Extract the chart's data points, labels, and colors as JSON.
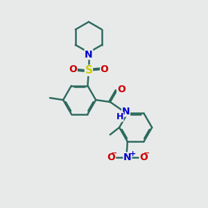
{
  "bg_color": "#e8eaea",
  "bond_color": "#2d6b5e",
  "bond_width": 1.8,
  "dbo": 0.055,
  "atom_colors": {
    "N": "#0000cc",
    "O": "#cc0000",
    "S": "#cccc00",
    "H": "#0000cc"
  },
  "font_size": 10,
  "fig_size": [
    3.0,
    3.0
  ]
}
